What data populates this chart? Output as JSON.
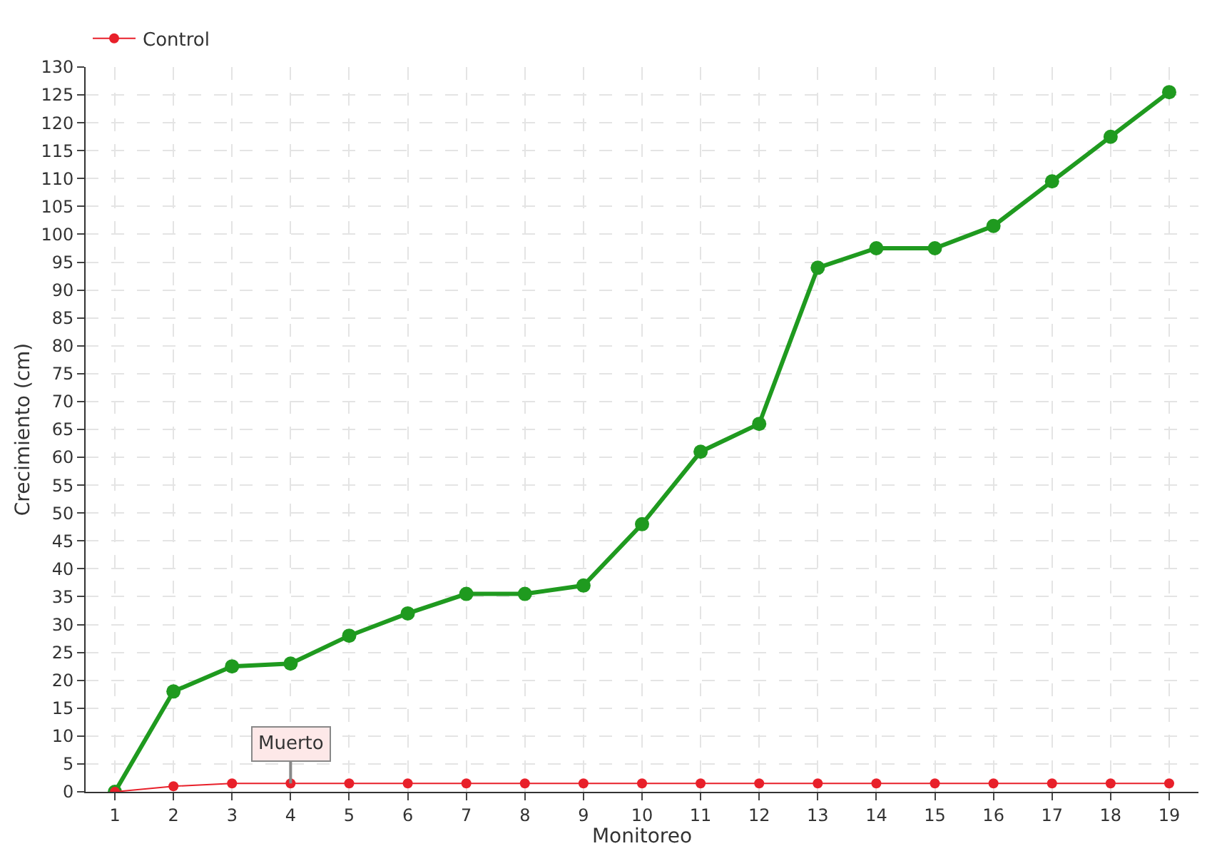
{
  "chart_data": {
    "type": "line",
    "xlabel": "Monitoreo",
    "ylabel": "Crecimiento (cm)",
    "x": [
      1,
      2,
      3,
      4,
      5,
      6,
      7,
      8,
      9,
      10,
      11,
      12,
      13,
      14,
      15,
      16,
      17,
      18,
      19
    ],
    "xlim": [
      0.5,
      19.5
    ],
    "xticks": [
      1,
      2,
      3,
      4,
      5,
      6,
      7,
      8,
      9,
      10,
      11,
      12,
      13,
      14,
      15,
      16,
      17,
      18,
      19
    ],
    "series": [
      {
        "color": "#1f9a1f",
        "values": [
          0,
          18,
          22.5,
          23,
          28,
          32,
          35.5,
          35.5,
          37,
          48,
          61,
          66,
          94,
          97.5,
          97.5,
          101.5,
          109.5,
          117.5,
          125.5
        ]
      },
      {
        "name": "Control",
        "color": "#e8202a",
        "values": [
          0,
          1,
          1.5,
          1.5,
          1.5,
          1.5,
          1.5,
          1.5,
          1.5,
          1.5,
          1.5,
          1.5,
          1.5,
          1.5,
          1.5,
          1.5,
          1.5,
          1.5,
          1.5
        ]
      }
    ],
    "ylim": [
      0,
      130
    ],
    "yticks": [
      0,
      5,
      10,
      15,
      20,
      25,
      30,
      35,
      40,
      45,
      50,
      55,
      60,
      65,
      70,
      75,
      80,
      85,
      90,
      95,
      100,
      105,
      110,
      115,
      120,
      125,
      130
    ],
    "annotations": [
      {
        "text": "Muerto",
        "x": 4,
        "y": 1.5
      }
    ],
    "grid": true,
    "legend": "top left",
    "marker": "circle",
    "line_style": "solid"
  }
}
